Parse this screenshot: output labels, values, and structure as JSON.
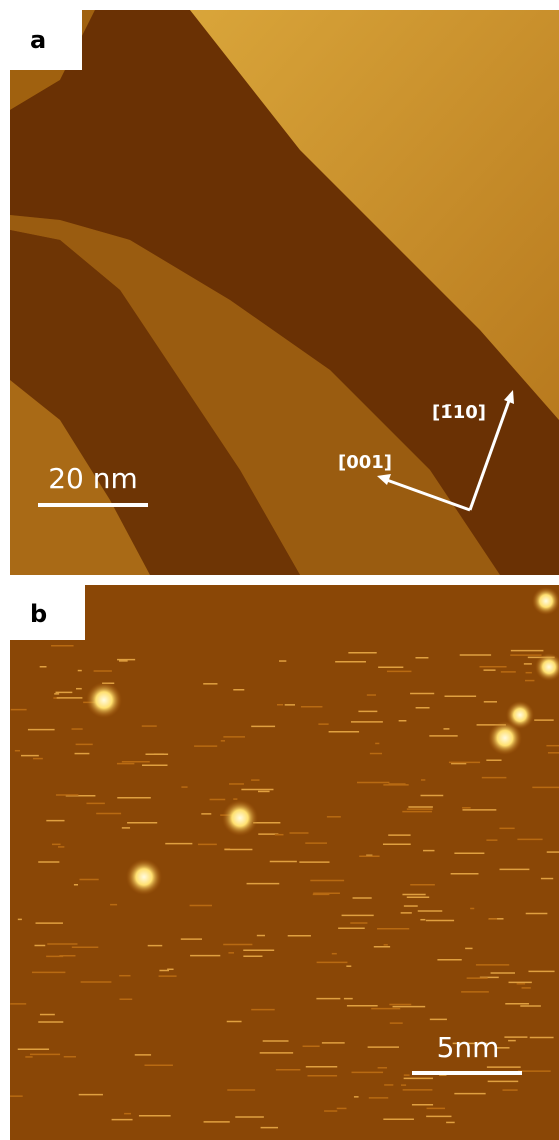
{
  "panels": [
    {
      "label": "a",
      "scale_bar": "20 nm",
      "directions": [
        "[001]",
        "[1̄10]"
      ]
    },
    {
      "label": "b",
      "scale_bar": "5nm"
    }
  ]
}
